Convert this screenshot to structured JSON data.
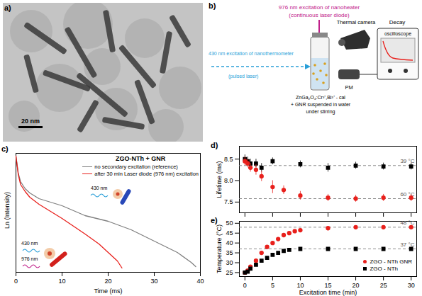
{
  "image": {
    "title": "a)",
    "scale_bar": "20 nm"
  },
  "diagram": {
    "title": "b)",
    "heater_label": "976 nm excitation of nanoheater",
    "heater_source": "(continuous laser diode)",
    "thermometer_label": "430 nm excitation of nanothermometer",
    "thermometer_source": "(pulsed laser)",
    "camera": "Thermal camera",
    "decay": "Decay",
    "oscilloscope": "oscilloscope",
    "detector": "PM",
    "sample": [
      "ZnGa₂O₄:Cr³⁺,Bi³⁺ - cal",
      "+ GNR suspended in water",
      "under stirring"
    ]
  },
  "chart_data": [
    {
      "type": "line",
      "title": "c)",
      "subtitle": "ZGO-NTh + GNR",
      "x_label": "Time (ms)",
      "y_label": "Ln (Intensity)",
      "xlim": [
        0,
        40
      ],
      "xticks": [
        0,
        10,
        20,
        30,
        40
      ],
      "ylim": [
        -8.2,
        0.2
      ],
      "yticks": [],
      "tick_labels": "x",
      "legend": "top-right",
      "annotations": [
        "430 nm",
        "976 nm",
        "430 nm"
      ],
      "series": [
        {
          "name": "no secondary excitation (reference)",
          "color": "#808080",
          "x": [
            0,
            0.5,
            1,
            2,
            3,
            5,
            10,
            15,
            20,
            25,
            30,
            35,
            38,
            39
          ],
          "values": [
            0,
            -1.2,
            -1.8,
            -2.3,
            -2.6,
            -3.0,
            -3.5,
            -4.2,
            -4.6,
            -5.2,
            -6.0,
            -6.8,
            -7.5,
            -7.8
          ]
        },
        {
          "name": "after 30 min Laser diode (976 nm) excitation",
          "color": "#e8201c",
          "x": [
            0,
            0.5,
            1,
            2,
            3,
            5,
            10,
            15,
            18,
            20,
            22,
            23
          ],
          "values": [
            0,
            -1.3,
            -2.0,
            -2.5,
            -2.9,
            -3.4,
            -4.4,
            -5.5,
            -6.2,
            -6.8,
            -7.4,
            -7.9
          ]
        }
      ]
    },
    {
      "type": "scatter",
      "title": "d)",
      "y_label": "Lifetime (ms)",
      "xlim": [
        -1,
        31
      ],
      "xticks": [
        0,
        5,
        10,
        15,
        20,
        25,
        30
      ],
      "ylim": [
        7.25,
        8.8
      ],
      "yticks": [
        {
          "value": 7.5,
          "label": "7.5"
        },
        {
          "value": 8,
          "label": "8.0"
        },
        {
          "value": 8.5,
          "label": "8.5"
        }
      ],
      "tick_labels": "y",
      "reference_lines": [
        {
          "value": 8.35,
          "label": "39 °C"
        },
        {
          "value": 7.58,
          "label": "60 °C"
        }
      ],
      "series": [
        {
          "color": "#000000",
          "marker": "square",
          "x": [
            0,
            0.5,
            1,
            2,
            3,
            5,
            10,
            15,
            20,
            25,
            30
          ],
          "values": [
            8.5,
            8.45,
            8.4,
            8.4,
            8.3,
            8.45,
            8.38,
            8.3,
            8.35,
            8.33,
            8.33
          ],
          "errors": [
            0.1,
            0.1,
            0.1,
            0.1,
            0.1,
            0.08,
            0.08,
            0.1,
            0.08,
            0.08,
            0.08
          ]
        },
        {
          "color": "#e8201c",
          "marker": "circle",
          "x": [
            0,
            0.5,
            1,
            2,
            3,
            5,
            7,
            10,
            15,
            20,
            25,
            30
          ],
          "values": [
            8.45,
            8.4,
            8.3,
            8.25,
            8.1,
            7.85,
            7.78,
            7.65,
            7.6,
            7.58,
            7.6,
            7.6
          ],
          "errors": [
            0.1,
            0.1,
            0.1,
            0.12,
            0.12,
            0.15,
            0.1,
            0.1,
            0.08,
            0.08,
            0.08,
            0.08
          ]
        }
      ]
    },
    {
      "type": "scatter",
      "title": "e)",
      "x_label": "Excitation time (min)",
      "y_label": "Temperature (°C)",
      "xlim": [
        -1,
        31
      ],
      "xticks": [
        0,
        5,
        10,
        15,
        20,
        25,
        30
      ],
      "ylim": [
        23,
        51
      ],
      "yticks": [
        25,
        30,
        35,
        40,
        45,
        50
      ],
      "legend": "bottom-right",
      "reference_lines": [
        {
          "value": 48,
          "label": "48 °C"
        },
        {
          "value": 37,
          "label": "37 °C"
        }
      ],
      "series": [
        {
          "name": "ZGO - NTh GNR",
          "color": "#e8201c",
          "marker": "circle",
          "x": [
            0,
            0.5,
            1,
            2,
            3,
            4,
            5,
            6,
            7,
            8,
            9,
            10,
            15,
            20,
            25,
            30
          ],
          "values": [
            25,
            26,
            28,
            31,
            35,
            38,
            40,
            42,
            44,
            45,
            46,
            46.5,
            47.5,
            48,
            48,
            48
          ]
        },
        {
          "name": "ZGO - NTh",
          "color": "#000000",
          "marker": "square",
          "x": [
            0,
            0.5,
            1,
            2,
            3,
            4,
            5,
            6,
            7,
            8,
            10,
            15,
            20,
            25,
            30
          ],
          "values": [
            25,
            25.5,
            27,
            29,
            31,
            32.5,
            34,
            35,
            36,
            36.5,
            37,
            37,
            37,
            37,
            37
          ]
        }
      ]
    }
  ]
}
